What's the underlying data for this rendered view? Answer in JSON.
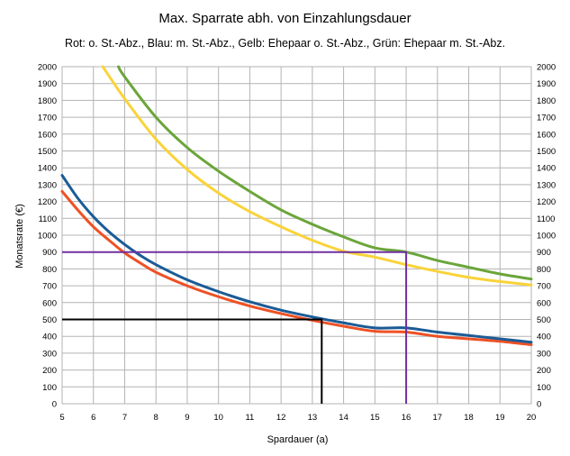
{
  "chart_data": {
    "type": "line",
    "title": "Max. Sparrate abh. von Einzahlungsdauer",
    "subtitle": "Rot: o. St.-Abz., Blau: m. St.-Abz., Gelb: Ehepaar o. St.-Abz., Grün: Ehepaar m. St.-Abz.",
    "xlabel": "Spardauer (a)",
    "ylabel": "Monatsrate (€)",
    "xlim": [
      5,
      20
    ],
    "ylim": [
      0,
      2000
    ],
    "x_ticks": [
      "5",
      "6",
      "7",
      "8",
      "9",
      "10",
      "11",
      "12",
      "13",
      "14",
      "15",
      "16",
      "17",
      "18",
      "19",
      "20"
    ],
    "y_ticks": [
      "0",
      "100",
      "200",
      "300",
      "400",
      "500",
      "600",
      "700",
      "800",
      "900",
      "1000",
      "1100",
      "1200",
      "1300",
      "1400",
      "1500",
      "1600",
      "1700",
      "1800",
      "1900",
      "2000"
    ],
    "grid": true,
    "colors": {
      "red": "#ee5125",
      "blue": "#1b5b96",
      "yellow": "#f9d33a",
      "green": "#6ba53a",
      "purple": "#7030a0",
      "black": "#000000",
      "grid": "#b3b3b3"
    },
    "series": [
      {
        "color": "#ee5125",
        "x": [
          5,
          5.5,
          6,
          6.5,
          7,
          7.5,
          8,
          9,
          10,
          11,
          12,
          13,
          14,
          15,
          16,
          17,
          18,
          19,
          20
        ],
        "y": [
          1260,
          1150,
          1050,
          970,
          895,
          835,
          780,
          700,
          635,
          580,
          535,
          495,
          460,
          430,
          425,
          400,
          385,
          370,
          350
        ]
      },
      {
        "color": "#1b5b96",
        "x": [
          5,
          5.5,
          6,
          6.5,
          7,
          7.5,
          8,
          9,
          10,
          11,
          12,
          13,
          14,
          15,
          16,
          17,
          18,
          19,
          20
        ],
        "y": [
          1355,
          1220,
          1110,
          1020,
          945,
          880,
          825,
          735,
          665,
          605,
          555,
          515,
          480,
          450,
          450,
          425,
          405,
          385,
          365
        ]
      },
      {
        "color": "#f9d33a",
        "x": [
          6.3,
          7,
          8,
          9,
          10,
          11,
          12,
          13,
          14,
          15,
          16,
          17,
          18,
          19,
          20
        ],
        "y": [
          2000,
          1810,
          1570,
          1390,
          1250,
          1140,
          1050,
          970,
          905,
          870,
          825,
          785,
          750,
          725,
          705
        ]
      },
      {
        "color": "#6ba53a",
        "x": [
          6.8,
          7,
          8,
          9,
          10,
          11,
          12,
          13,
          14,
          15,
          16,
          17,
          18,
          19,
          20
        ],
        "y": [
          2000,
          1940,
          1700,
          1520,
          1380,
          1260,
          1150,
          1065,
          990,
          925,
          900,
          850,
          810,
          770,
          740
        ]
      }
    ],
    "reference_lines": [
      {
        "color": "#7030a0",
        "x": [
          5,
          16,
          16
        ],
        "y": [
          900,
          900,
          0
        ]
      },
      {
        "color": "#000000",
        "x": [
          5,
          13.3,
          13.3
        ],
        "y": [
          500,
          500,
          0
        ]
      }
    ]
  }
}
